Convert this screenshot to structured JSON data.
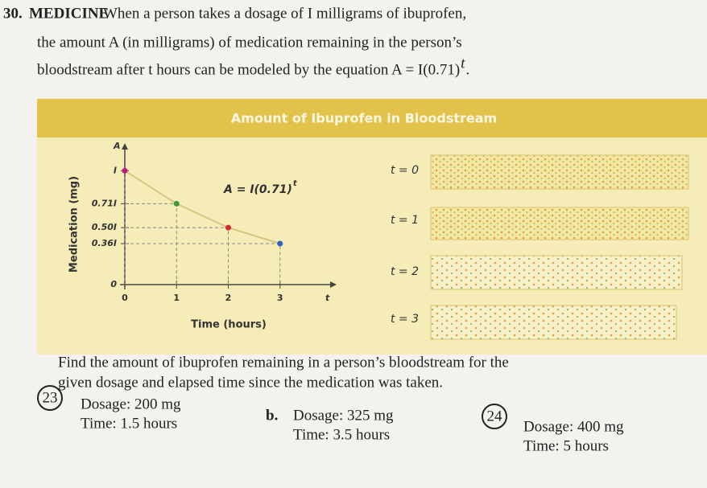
{
  "problem": {
    "number": "30.",
    "label": "MEDICINE",
    "lines": [
      "When a person takes a dosage of I milligrams of ibuprofen,",
      "the amount A (in milligrams) of medication remaining in the person’s",
      "bloodstream after t hours can be modeled by the equation A = I(0.71)"
    ],
    "exponent": "t",
    "end": "."
  },
  "panel": {
    "title": "Amount of Ibuprofen in Bloodstream",
    "strips": [
      "t = 0",
      "t = 1",
      "t = 2",
      "t = 3"
    ]
  },
  "chart_data": {
    "type": "line",
    "equation": "A = I(0.71)",
    "equation_exponent": "t",
    "x_label": "Time (hours)",
    "y_label": "Medication (mg)",
    "x_axis_name": "t",
    "y_axis_name": "A",
    "x": [
      0,
      1,
      2,
      3
    ],
    "series": [
      {
        "values": [
          1,
          0.71,
          0.5,
          0.36
        ],
        "color": "#d8c67e",
        "point_colors": [
          "#c2187a",
          "#3a9a3a",
          "#d42a2a",
          "#2a62c8"
        ]
      }
    ],
    "xlim": [
      0,
      4
    ],
    "ylim": [
      0,
      1.2
    ],
    "xticks": [
      0,
      1,
      2,
      3
    ],
    "yticks": [
      0,
      {
        "value": 0.36,
        "label": "0.36I"
      },
      {
        "value": 0.5,
        "label": "0.50I"
      },
      {
        "value": 0.71,
        "label": "0.71I"
      },
      {
        "value": 1,
        "label": "I"
      }
    ]
  },
  "exercises": {
    "instruction": [
      "Find the amount of ibuprofen remaining in a person’s bloodstream for the",
      "given dosage and elapsed time since the medication was taken."
    ],
    "items": [
      {
        "marker": "23",
        "dosage": "Dosage: 200 mg",
        "time": "Time: 1.5 hours"
      },
      {
        "marker": "b.",
        "dosage": "Dosage: 325 mg",
        "time": "Time: 3.5 hours"
      },
      {
        "marker": "24",
        "dosage": "Dosage: 400 mg",
        "time": "Time: 5 hours"
      }
    ]
  }
}
